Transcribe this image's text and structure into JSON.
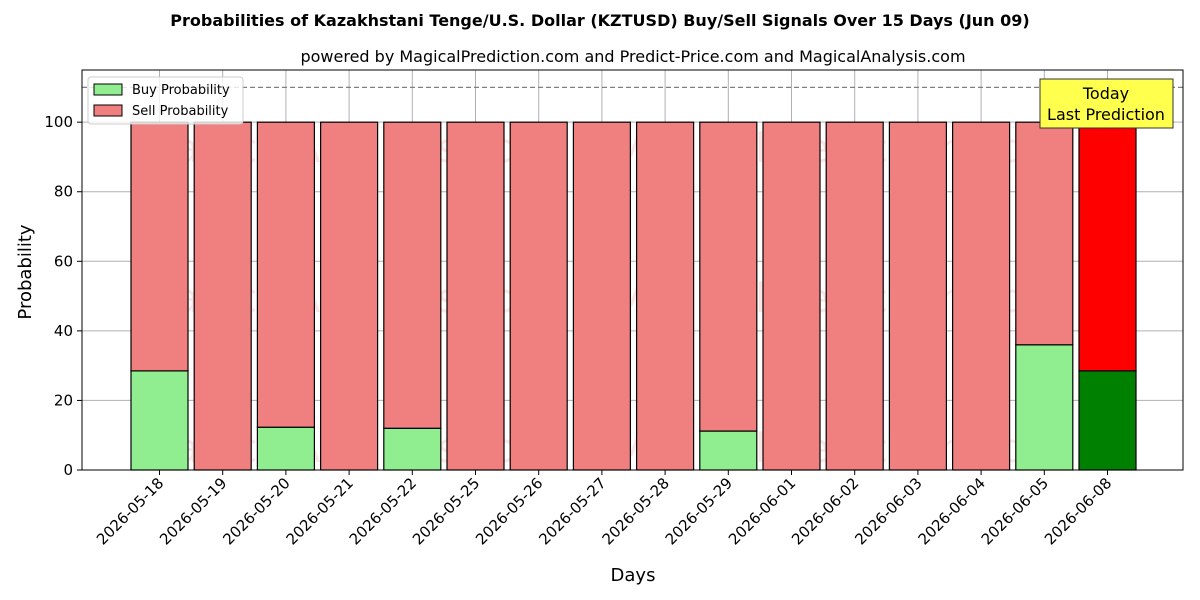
{
  "chart_data": {
    "type": "bar",
    "stacked": true,
    "title": "Probabilities of Kazakhstani Tenge/U.S. Dollar (KZTUSD) Buy/Sell Signals Over 15 Days (Jun 09)",
    "subtitle": "powered by MagicalPrediction.com and Predict-Price.com and MagicalAnalysis.com",
    "xlabel": "Days",
    "ylabel": "Probability",
    "ylim": [
      0,
      115
    ],
    "yticks": [
      0,
      20,
      40,
      60,
      80,
      100
    ],
    "reference_line": 110,
    "grid": true,
    "legend_position": "top-left",
    "categories": [
      "2026-05-18",
      "2026-05-19",
      "2026-05-20",
      "2026-05-21",
      "2026-05-22",
      "2026-05-25",
      "2026-05-26",
      "2026-05-27",
      "2026-05-28",
      "2026-05-29",
      "2026-06-01",
      "2026-06-02",
      "2026-06-03",
      "2026-06-04",
      "2026-06-05",
      "2026-06-08"
    ],
    "series": [
      {
        "name": "Buy Probability",
        "color": "#90ee90",
        "highlight_color": "#008000",
        "values": [
          28.5,
          0,
          12.3,
          0,
          12.0,
          0,
          0,
          0,
          0,
          11.2,
          0,
          0,
          0,
          0,
          36.0,
          28.5
        ]
      },
      {
        "name": "Sell Probability",
        "color": "#f08080",
        "highlight_color": "#ff0000",
        "values": [
          71.5,
          100,
          87.7,
          100,
          88.0,
          100,
          100,
          100,
          100,
          88.8,
          100,
          100,
          100,
          100,
          64.0,
          71.5
        ]
      }
    ],
    "highlight_index": 15,
    "annotation": {
      "lines": [
        "Today",
        "Last Prediction"
      ],
      "box_color": "#ffff4d"
    },
    "watermarks": [
      "MagicalAnalysis.com",
      "MagicalPrediction.com"
    ]
  }
}
